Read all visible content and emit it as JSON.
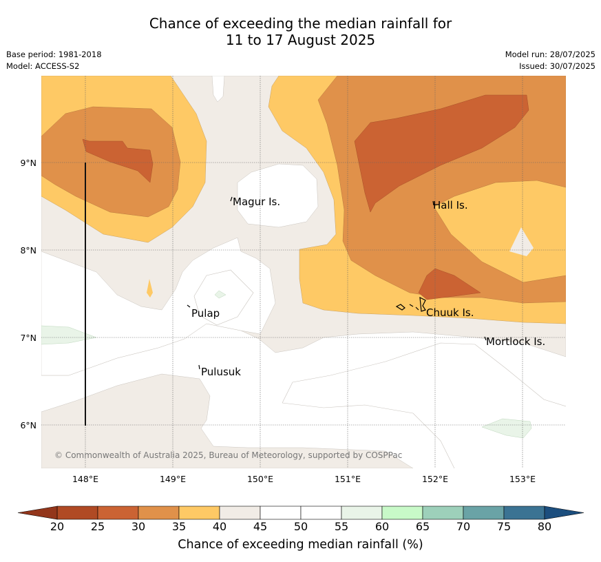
{
  "title_line1": "Chance of exceeding the median rainfall for",
  "title_line2": "11 to 17 August 2025",
  "meta_left": [
    "Base period: 1981-2018",
    "Model: ACCESS-S2"
  ],
  "meta_right": [
    "Model run: 28/07/2025",
    "Issued: 30/07/2025"
  ],
  "map": {
    "lon_ticks": [
      "148°E",
      "149°E",
      "150°E",
      "151°E",
      "152°E",
      "153°E"
    ],
    "lat_ticks": [
      "9°N",
      "8°N",
      "7°N",
      "6°N"
    ],
    "places": [
      {
        "name": "Magur Is.",
        "lon": 149.7,
        "lat": 8.55
      },
      {
        "name": "Hall Is.",
        "lon": 151.97,
        "lat": 8.52
      },
      {
        "name": "Pulap",
        "lon": 149.2,
        "lat": 7.35
      },
      {
        "name": "Chuuk Is.",
        "lon": 151.75,
        "lat": 7.4
      },
      {
        "name": "Mortlock Is.",
        "lon": 152.6,
        "lat": 6.97
      },
      {
        "name": "Pulusuk",
        "lon": 149.3,
        "lat": 6.65
      }
    ],
    "copyright": "© Commonwealth of Australia 2025, Bureau of Meteorology, supported by COSPPac"
  },
  "colorbar": {
    "ticks": [
      "20",
      "25",
      "30",
      "35",
      "40",
      "45",
      "50",
      "55",
      "60",
      "65",
      "70",
      "75",
      "80"
    ],
    "colors": [
      "#b04a24",
      "#cb6333",
      "#e0914a",
      "#fec965",
      "#f1ece6",
      "#ffffff",
      "#ffffff",
      "#e9f4e8",
      "#c8f9c8",
      "#9dd0ba",
      "#6aa3a6",
      "#3b7393"
    ],
    "under_color": "#93361b",
    "over_color": "#1c4e7e",
    "title": "Chance of exceeding median rainfall (%)"
  }
}
